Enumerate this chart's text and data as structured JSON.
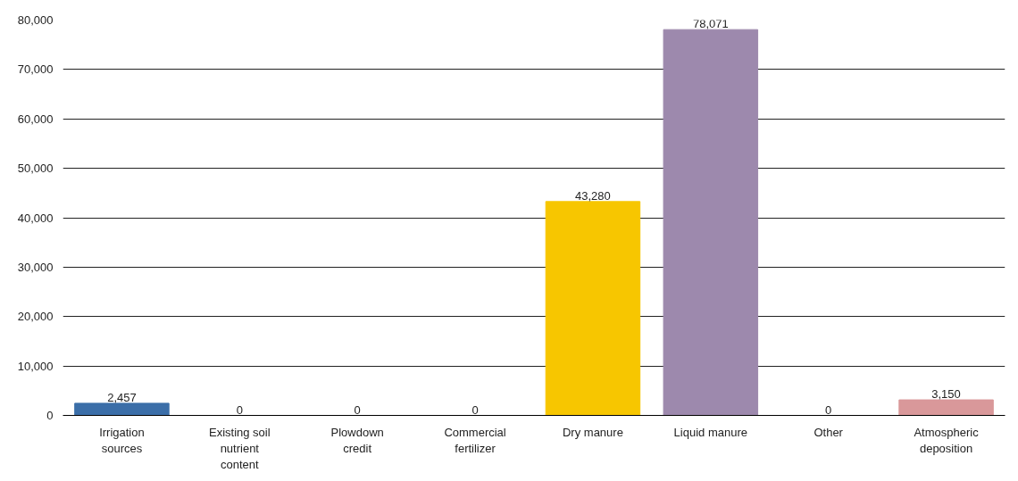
{
  "chart_data": {
    "type": "bar",
    "categories": [
      "Irrigation sources",
      "Existing soil nutrient content",
      "Plowdown credit",
      "Commercial fertilizer",
      "Dry manure",
      "Liquid manure",
      "Other",
      "Atmospheric deposition"
    ],
    "values": [
      2457,
      0,
      0,
      0,
      43280,
      78071,
      0,
      3150
    ],
    "colors": [
      "#3b6ea8",
      "#3b6ea8",
      "#3b6ea8",
      "#3b6ea8",
      "#f7c600",
      "#9d89ad",
      "#9d89ad",
      "#d9989a"
    ],
    "value_labels": [
      "2,457",
      "0",
      "0",
      "0",
      "43,280",
      "78,071",
      "0",
      "3,150"
    ],
    "ylim": [
      0,
      80000
    ],
    "yticks": [
      0,
      {
        "value": 10000,
        "label": "10,000"
      },
      {
        "value": 20000,
        "label": "20,000"
      },
      {
        "value": 30000,
        "label": "30,000"
      },
      {
        "value": 40000,
        "label": "40,000"
      },
      {
        "value": 50000,
        "label": "50,000"
      },
      {
        "value": 60000,
        "label": "60,000"
      },
      {
        "value": 70000,
        "label": "70,000"
      },
      {
        "value": 80000,
        "label": "80,000"
      }
    ],
    "grid": "y"
  }
}
